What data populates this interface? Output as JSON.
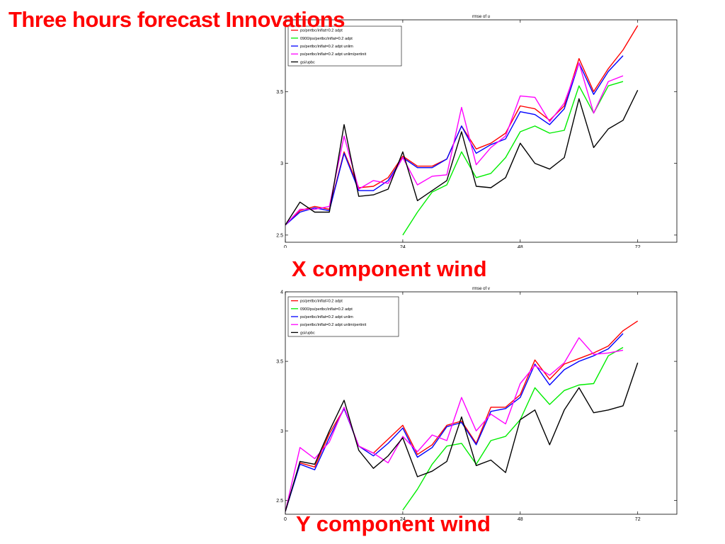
{
  "slide": {
    "title": "Three hours forecast Innovations",
    "caption_u": "X component wind",
    "caption_v": "Y component wind"
  },
  "chart_data": [
    {
      "type": "line",
      "title": "rmse of u",
      "xlabel": "",
      "ylabel": "",
      "xlim": [
        0,
        80
      ],
      "ylim": [
        2.45,
        4.0
      ],
      "xticks": [
        0,
        24,
        48,
        72
      ],
      "yticks": [
        2.5,
        3,
        3.5
      ],
      "grid": false,
      "legend": "top-left",
      "series": [
        {
          "name": "ps/pertbc/inflat=0.2 adpt",
          "color": "#ff0000",
          "x": [
            0,
            3,
            6,
            9,
            12,
            15,
            18,
            21,
            24,
            27,
            30,
            33,
            36,
            39,
            42,
            45,
            48,
            51,
            54,
            57,
            60,
            63,
            66,
            69,
            72
          ],
          "y": [
            2.57,
            2.67,
            2.7,
            2.68,
            3.08,
            2.83,
            2.84,
            2.9,
            3.05,
            2.98,
            2.98,
            3.03,
            3.26,
            3.1,
            3.14,
            3.21,
            3.4,
            3.38,
            3.3,
            3.4,
            3.73,
            3.5,
            3.66,
            3.79,
            3.96
          ]
        },
        {
          "name": "0900/ps/pertbc/inflat=0.2 adpt",
          "color": "#00ee00",
          "x": [
            24,
            27,
            30,
            33,
            36,
            39,
            42,
            45,
            48,
            51,
            54,
            57,
            60,
            63,
            66,
            69
          ],
          "y": [
            2.5,
            2.66,
            2.8,
            2.85,
            3.08,
            2.9,
            2.93,
            3.04,
            3.22,
            3.26,
            3.21,
            3.23,
            3.54,
            3.35,
            3.54,
            3.57
          ]
        },
        {
          "name": "ps/pertbc/inflat=0.2 adpt unlim",
          "color": "#0000ff",
          "x": [
            0,
            3,
            6,
            9,
            12,
            15,
            18,
            21,
            24,
            27,
            30,
            33,
            36,
            39,
            42,
            45,
            48,
            51,
            54,
            57,
            60,
            63,
            66,
            69
          ],
          "y": [
            2.57,
            2.66,
            2.69,
            2.67,
            3.07,
            2.81,
            2.81,
            2.88,
            3.04,
            2.97,
            2.97,
            3.03,
            3.26,
            3.07,
            3.13,
            3.17,
            3.36,
            3.34,
            3.27,
            3.38,
            3.7,
            3.48,
            3.64,
            3.75
          ]
        },
        {
          "name": "ps/pertbc/inflat=0.2 adpt unlim/pertinit",
          "color": "#ff00ff",
          "x": [
            0,
            3,
            6,
            9,
            12,
            15,
            18,
            21,
            24,
            27,
            30,
            33,
            36,
            39,
            42,
            45,
            48,
            51,
            54,
            57,
            60,
            63,
            66,
            69
          ],
          "y": [
            2.57,
            2.68,
            2.68,
            2.7,
            3.19,
            2.82,
            2.88,
            2.86,
            3.04,
            2.85,
            2.91,
            2.92,
            3.39,
            2.99,
            3.11,
            3.19,
            3.47,
            3.46,
            3.29,
            3.42,
            3.7,
            3.35,
            3.57,
            3.61
          ]
        },
        {
          "name": "gsi/upbc",
          "color": "#000000",
          "x": [
            0,
            3,
            6,
            9,
            12,
            15,
            18,
            21,
            24,
            27,
            30,
            33,
            36,
            39,
            42,
            45,
            48,
            51,
            54,
            57,
            60,
            63,
            66,
            69,
            72
          ],
          "y": [
            2.57,
            2.73,
            2.66,
            2.66,
            3.27,
            2.77,
            2.78,
            2.82,
            3.08,
            2.74,
            2.81,
            2.88,
            3.22,
            2.84,
            2.83,
            2.9,
            3.14,
            3.0,
            2.96,
            3.04,
            3.45,
            3.11,
            3.24,
            3.3,
            3.51
          ]
        }
      ]
    },
    {
      "type": "line",
      "title": "rmse of v",
      "xlabel": "",
      "ylabel": "",
      "xlim": [
        0,
        80
      ],
      "ylim": [
        2.4,
        4.0
      ],
      "xticks": [
        0,
        24,
        48,
        72
      ],
      "yticks": [
        2.5,
        3,
        3.5,
        4
      ],
      "grid": false,
      "legend": "top-left",
      "series": [
        {
          "name": "ps/pertbc/inflat=0.2 adpt",
          "color": "#ff0000",
          "x": [
            0,
            3,
            6,
            9,
            12,
            15,
            18,
            21,
            24,
            27,
            30,
            33,
            36,
            39,
            42,
            45,
            48,
            51,
            54,
            57,
            60,
            63,
            66,
            69,
            72
          ],
          "y": [
            2.42,
            2.77,
            2.74,
            2.98,
            3.16,
            2.89,
            2.84,
            2.94,
            3.04,
            2.83,
            2.9,
            3.04,
            3.07,
            2.91,
            3.17,
            3.17,
            3.26,
            3.51,
            3.37,
            3.48,
            3.52,
            3.56,
            3.61,
            3.72,
            3.79
          ]
        },
        {
          "name": "0900/ps/pertbc/inflat=0.2 adpt",
          "color": "#00ee00",
          "x": [
            24,
            27,
            30,
            33,
            36,
            39,
            42,
            45,
            48,
            51,
            54,
            57,
            60,
            63,
            66,
            69
          ],
          "y": [
            2.43,
            2.58,
            2.76,
            2.89,
            2.91,
            2.76,
            2.93,
            2.96,
            3.08,
            3.31,
            3.19,
            3.29,
            3.33,
            3.34,
            3.54,
            3.6
          ]
        },
        {
          "name": "ps/pertbc/inflat=0.2 adpt unlim",
          "color": "#0000ff",
          "x": [
            0,
            3,
            6,
            9,
            12,
            15,
            18,
            21,
            24,
            27,
            30,
            33,
            36,
            39,
            42,
            45,
            48,
            51,
            54,
            57,
            60,
            63,
            66,
            69
          ],
          "y": [
            2.42,
            2.76,
            2.72,
            2.95,
            3.16,
            2.89,
            2.82,
            2.91,
            3.02,
            2.81,
            2.88,
            3.03,
            3.06,
            2.9,
            3.14,
            3.16,
            3.24,
            3.48,
            3.33,
            3.44,
            3.5,
            3.54,
            3.59,
            3.7
          ]
        },
        {
          "name": "ps/pertbc/inflat=0.2 adpt unlim/pertinit",
          "color": "#ff00ff",
          "x": [
            0,
            3,
            6,
            9,
            12,
            15,
            18,
            21,
            24,
            27,
            30,
            33,
            36,
            39,
            42,
            45,
            48,
            51,
            54,
            57,
            60,
            63,
            66,
            69
          ],
          "y": [
            2.42,
            2.88,
            2.8,
            2.92,
            3.17,
            2.89,
            2.84,
            2.77,
            2.96,
            2.85,
            2.97,
            2.93,
            3.24,
            3.0,
            3.12,
            3.05,
            3.34,
            3.47,
            3.4,
            3.49,
            3.67,
            3.55,
            3.56,
            3.58
          ]
        },
        {
          "name": "gsi/upbc",
          "color": "#000000",
          "x": [
            0,
            3,
            6,
            9,
            12,
            15,
            18,
            21,
            24,
            27,
            30,
            33,
            36,
            39,
            42,
            45,
            48,
            51,
            54,
            57,
            60,
            63,
            66,
            69,
            72
          ],
          "y": [
            2.42,
            2.78,
            2.76,
            3.0,
            3.22,
            2.86,
            2.73,
            2.82,
            2.95,
            2.67,
            2.71,
            2.78,
            3.1,
            2.75,
            2.79,
            2.7,
            3.08,
            3.15,
            2.9,
            3.15,
            3.31,
            3.13,
            3.15,
            3.18,
            3.49
          ]
        }
      ]
    }
  ]
}
